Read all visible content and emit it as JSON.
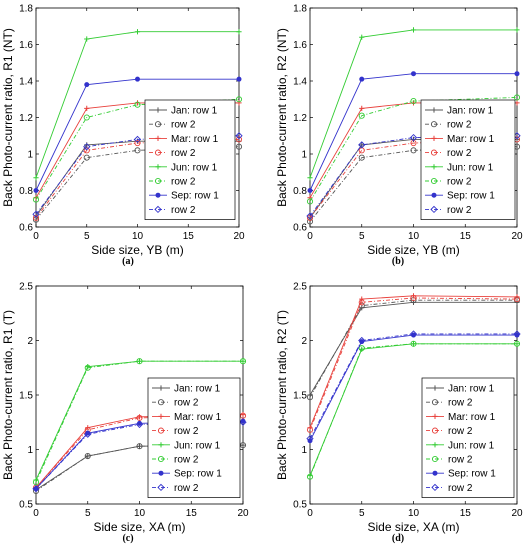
{
  "chart_data": [
    {
      "type": "line",
      "caption": "(a)",
      "xlabel": "Side size, YB (m)",
      "ylabel": "Back Photo-current ratio, R1 (NT)",
      "x": [
        0,
        5,
        10,
        20
      ],
      "xlim": [
        0,
        20
      ],
      "ylim": [
        0.6,
        1.8
      ],
      "xticks": [
        "0",
        "5",
        "10",
        "15",
        "20"
      ],
      "yticks": [
        "0.6",
        "0.8",
        "1",
        "1.2",
        "1.4",
        "1.6",
        "1.8"
      ],
      "grid": false,
      "legend_position": "center-right",
      "series": [
        {
          "name": "Jan: row 1",
          "color": "#555555",
          "values": [
            0.66,
            1.05,
            1.07,
            1.07
          ]
        },
        {
          "name": "row 2",
          "color": "#555555",
          "values": [
            0.64,
            0.98,
            1.02,
            1.04
          ]
        },
        {
          "name": "Mar: row 1",
          "color": "#e8413c",
          "values": [
            0.76,
            1.25,
            1.28,
            1.28
          ]
        },
        {
          "name": "row 2",
          "color": "#e8413c",
          "values": [
            0.65,
            1.02,
            1.06,
            1.08
          ]
        },
        {
          "name": "Jun: row 1",
          "color": "#33cc33",
          "values": [
            0.87,
            1.63,
            1.67,
            1.67
          ]
        },
        {
          "name": "row 2",
          "color": "#33cc33",
          "values": [
            0.75,
            1.2,
            1.27,
            1.3
          ]
        },
        {
          "name": "Sep: row 1",
          "color": "#3333cc",
          "values": [
            0.8,
            1.38,
            1.41,
            1.41
          ]
        },
        {
          "name": "row 2",
          "color": "#3333cc",
          "values": [
            0.67,
            1.04,
            1.08,
            1.1
          ]
        }
      ]
    },
    {
      "type": "line",
      "caption": "(b)",
      "xlabel": "Side size, YB (m)",
      "ylabel": "Back Photo-current ratio, R2 (NT)",
      "x": [
        0,
        5,
        10,
        20
      ],
      "xlim": [
        0,
        20
      ],
      "ylim": [
        0.6,
        1.8
      ],
      "xticks": [
        "0",
        "5",
        "10",
        "15",
        "20"
      ],
      "yticks": [
        "0.6",
        "0.8",
        "1",
        "1.2",
        "1.4",
        "1.6",
        "1.8"
      ],
      "grid": false,
      "legend_position": "center-right",
      "series": [
        {
          "name": "Jan: row 1",
          "color": "#555555",
          "values": [
            0.65,
            1.05,
            1.08,
            1.08
          ]
        },
        {
          "name": "row 2",
          "color": "#555555",
          "values": [
            0.63,
            0.98,
            1.02,
            1.04
          ]
        },
        {
          "name": "Mar: row 1",
          "color": "#e8413c",
          "values": [
            0.76,
            1.25,
            1.28,
            1.28
          ]
        },
        {
          "name": "row 2",
          "color": "#e8413c",
          "values": [
            0.65,
            1.02,
            1.06,
            1.08
          ]
        },
        {
          "name": "Jun: row 1",
          "color": "#33cc33",
          "values": [
            0.87,
            1.64,
            1.68,
            1.68
          ]
        },
        {
          "name": "row 2",
          "color": "#33cc33",
          "values": [
            0.74,
            1.21,
            1.29,
            1.31
          ]
        },
        {
          "name": "Sep: row 1",
          "color": "#3333cc",
          "values": [
            0.8,
            1.41,
            1.44,
            1.44
          ]
        },
        {
          "name": "row 2",
          "color": "#3333cc",
          "values": [
            0.66,
            1.05,
            1.09,
            1.1
          ]
        }
      ]
    },
    {
      "type": "line",
      "caption": "(c)",
      "xlabel": "Side size, XA (m)",
      "ylabel": "Back Photo-current ratio, R1 (T)",
      "x": [
        0,
        5,
        10,
        20
      ],
      "xlim": [
        0,
        20
      ],
      "ylim": [
        0.5,
        2.5
      ],
      "xticks": [
        "0",
        "5",
        "10",
        "15",
        "20"
      ],
      "yticks": [
        "0.5",
        "1",
        "1.5",
        "2",
        "2.5"
      ],
      "grid": false,
      "legend_position": "bottom-right",
      "series": [
        {
          "name": "Jan: row 1",
          "color": "#555555",
          "values": [
            0.63,
            0.94,
            1.03,
            1.04
          ]
        },
        {
          "name": "row 2",
          "color": "#555555",
          "values": [
            0.62,
            0.94,
            1.03,
            1.04
          ]
        },
        {
          "name": "Mar: row 1",
          "color": "#e8413c",
          "values": [
            0.65,
            1.2,
            1.3,
            1.32
          ]
        },
        {
          "name": "row 2",
          "color": "#e8413c",
          "values": [
            0.65,
            1.18,
            1.29,
            1.31
          ]
        },
        {
          "name": "Jun: row 1",
          "color": "#33cc33",
          "values": [
            0.72,
            1.76,
            1.81,
            1.81
          ]
        },
        {
          "name": "row 2",
          "color": "#33cc33",
          "values": [
            0.7,
            1.75,
            1.81,
            1.81
          ]
        },
        {
          "name": "Sep: row 1",
          "color": "#3333cc",
          "values": [
            0.64,
            1.15,
            1.24,
            1.26
          ]
        },
        {
          "name": "row 2",
          "color": "#3333cc",
          "values": [
            0.64,
            1.14,
            1.23,
            1.25
          ]
        }
      ]
    },
    {
      "type": "line",
      "caption": "(d)",
      "xlabel": "Side size, XA (m)",
      "ylabel": "Back Photo-current ratio, R2 (T)",
      "x": [
        0,
        5,
        10,
        20
      ],
      "xlim": [
        0,
        20
      ],
      "ylim": [
        0.5,
        2.5
      ],
      "xticks": [
        "0",
        "5",
        "10",
        "15",
        "20"
      ],
      "yticks": [
        "0.5",
        "1",
        "1.5",
        "2",
        "2.5"
      ],
      "grid": false,
      "legend_position": "bottom-right",
      "series": [
        {
          "name": "Jan: row 1",
          "color": "#555555",
          "values": [
            1.5,
            2.3,
            2.35,
            2.35
          ]
        },
        {
          "name": "row 2",
          "color": "#555555",
          "values": [
            1.48,
            2.32,
            2.37,
            2.37
          ]
        },
        {
          "name": "Mar: row 1",
          "color": "#e8413c",
          "values": [
            1.2,
            2.38,
            2.41,
            2.4
          ]
        },
        {
          "name": "row 2",
          "color": "#e8413c",
          "values": [
            1.18,
            2.35,
            2.39,
            2.38
          ]
        },
        {
          "name": "Jun: row 1",
          "color": "#33cc33",
          "values": [
            0.76,
            1.92,
            1.97,
            1.97
          ]
        },
        {
          "name": "row 2",
          "color": "#33cc33",
          "values": [
            0.75,
            1.93,
            1.97,
            1.97
          ]
        },
        {
          "name": "Sep: row 1",
          "color": "#3333cc",
          "values": [
            1.08,
            1.99,
            2.05,
            2.05
          ]
        },
        {
          "name": "row 2",
          "color": "#3333cc",
          "values": [
            1.1,
            2.0,
            2.06,
            2.06
          ]
        }
      ]
    }
  ]
}
